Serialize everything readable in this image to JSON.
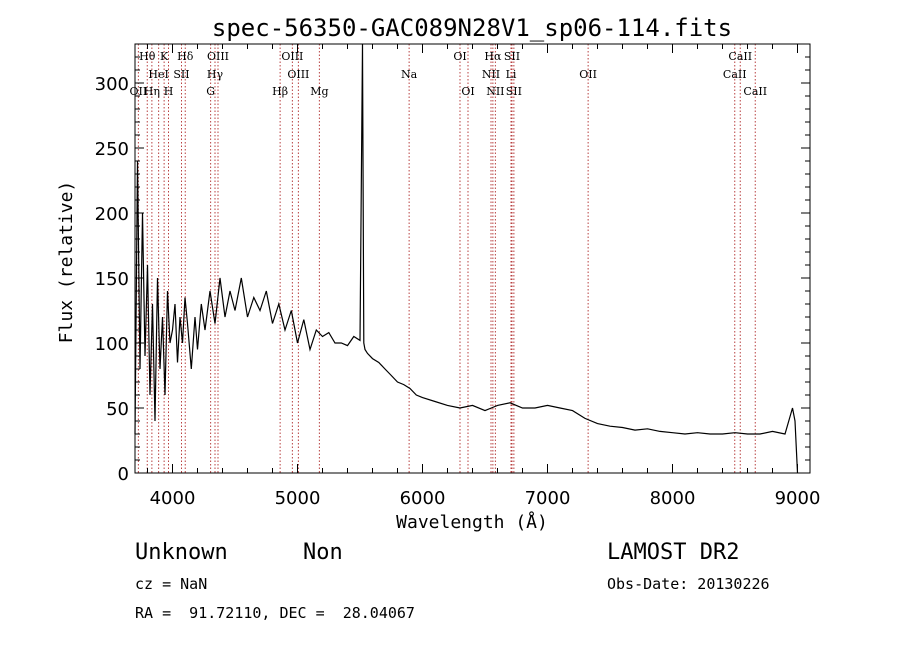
{
  "chart_data": {
    "type": "line",
    "title": "spec-56350-GAC089N28V1_sp06-114.fits",
    "xlabel": "Wavelength (Å)",
    "ylabel": "Flux (relative)",
    "xlim": [
      3700,
      9100
    ],
    "ylim": [
      0,
      330
    ],
    "xticks": [
      4000,
      5000,
      6000,
      7000,
      8000,
      9000
    ],
    "yticks": [
      0,
      50,
      100,
      150,
      200,
      250,
      300
    ],
    "grid": false,
    "series": [
      {
        "x": [
          3700,
          3720,
          3740,
          3760,
          3780,
          3800,
          3820,
          3840,
          3860,
          3880,
          3900,
          3920,
          3940,
          3960,
          3980,
          4000,
          4020,
          4040,
          4060,
          4080,
          4100,
          4120,
          4150,
          4180,
          4200,
          4230,
          4260,
          4300,
          4340,
          4380,
          4420,
          4460,
          4500,
          4550,
          4600,
          4650,
          4700,
          4750,
          4800,
          4850,
          4900,
          4950,
          5000,
          5050,
          5100,
          5150,
          5200,
          5250,
          5300,
          5350,
          5400,
          5450,
          5500,
          5520,
          5530,
          5540,
          5560,
          5600,
          5650,
          5700,
          5750,
          5800,
          5850,
          5900,
          5950,
          6000,
          6100,
          6200,
          6300,
          6400,
          6500,
          6550,
          6600,
          6700,
          6800,
          6900,
          7000,
          7100,
          7200,
          7300,
          7400,
          7500,
          7600,
          7700,
          7800,
          7900,
          8000,
          8100,
          8200,
          8300,
          8400,
          8500,
          8600,
          8700,
          8800,
          8900,
          8960,
          8980,
          9000
        ],
        "y": [
          30,
          240,
          80,
          200,
          90,
          160,
          60,
          130,
          40,
          150,
          80,
          120,
          60,
          140,
          100,
          110,
          130,
          85,
          120,
          100,
          135,
          115,
          80,
          120,
          95,
          130,
          110,
          140,
          115,
          150,
          120,
          140,
          125,
          150,
          120,
          135,
          125,
          140,
          115,
          130,
          110,
          125,
          100,
          118,
          95,
          110,
          105,
          108,
          100,
          100,
          98,
          105,
          102,
          330,
          100,
          95,
          92,
          88,
          85,
          80,
          75,
          70,
          68,
          65,
          60,
          58,
          55,
          52,
          50,
          52,
          48,
          50,
          52,
          54,
          50,
          50,
          52,
          50,
          48,
          42,
          38,
          36,
          35,
          33,
          34,
          32,
          31,
          30,
          31,
          30,
          30,
          31,
          30,
          30,
          32,
          30,
          50,
          40,
          0
        ]
      }
    ],
    "line_labels": [
      {
        "name": "Hθ",
        "x": 3798,
        "row": 0
      },
      {
        "name": "K",
        "x": 3933,
        "row": 0
      },
      {
        "name": "Hδ",
        "x": 4102,
        "row": 0
      },
      {
        "name": "OIII",
        "x": 4364,
        "row": 0
      },
      {
        "name": "OIII",
        "x": 4959,
        "row": 0
      },
      {
        "name": "OI",
        "x": 6300,
        "row": 0
      },
      {
        "name": "Hα",
        "x": 6563,
        "row": 0
      },
      {
        "name": "SII",
        "x": 6716,
        "row": 0
      },
      {
        "name": "CaII",
        "x": 8542,
        "row": 0
      },
      {
        "name": "HeI",
        "x": 3889,
        "row": 1
      },
      {
        "name": "SII",
        "x": 4072,
        "row": 1
      },
      {
        "name": "Hγ",
        "x": 4340,
        "row": 1
      },
      {
        "name": "OIII",
        "x": 5007,
        "row": 1
      },
      {
        "name": "Na",
        "x": 5893,
        "row": 1
      },
      {
        "name": "NII",
        "x": 6548,
        "row": 1
      },
      {
        "name": "Li",
        "x": 6708,
        "row": 1
      },
      {
        "name": "OII",
        "x": 7325,
        "row": 1
      },
      {
        "name": "CaII",
        "x": 8498,
        "row": 1
      },
      {
        "name": "OII",
        "x": 3727,
        "row": 2
      },
      {
        "name": "Hη",
        "x": 3835,
        "row": 2
      },
      {
        "name": "H",
        "x": 3968,
        "row": 2
      },
      {
        "name": "G",
        "x": 4305,
        "row": 2
      },
      {
        "name": "Hβ",
        "x": 4861,
        "row": 2
      },
      {
        "name": "Mg",
        "x": 5175,
        "row": 2
      },
      {
        "name": "OI",
        "x": 6364,
        "row": 2
      },
      {
        "name": "NII",
        "x": 6583,
        "row": 2
      },
      {
        "name": "SII",
        "x": 6731,
        "row": 2
      },
      {
        "name": "CaII",
        "x": 8662,
        "row": 2
      }
    ],
    "line_positions": [
      3727,
      3798,
      3835,
      3889,
      3933,
      3968,
      4072,
      4102,
      4305,
      4340,
      4364,
      4861,
      4959,
      5007,
      5175,
      5893,
      6300,
      6364,
      6548,
      6563,
      6583,
      6708,
      6716,
      6731,
      7325,
      8498,
      8542,
      8662
    ]
  },
  "info": {
    "class": "Unknown",
    "subclass": "Non",
    "survey": "LAMOST DR2",
    "cz": "cz = NaN",
    "obs_date": "Obs-Date: 20130226",
    "radec": "RA =  91.72110, DEC =  28.04067"
  }
}
